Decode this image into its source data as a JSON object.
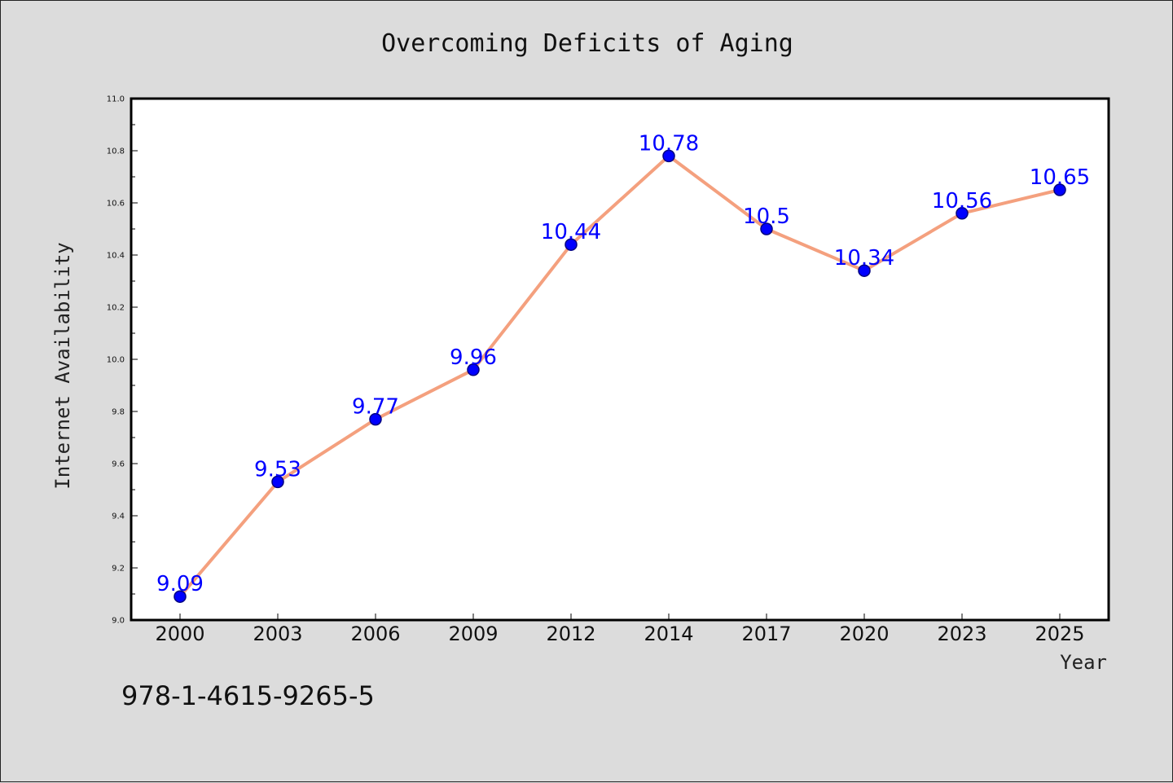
{
  "chart_data": {
    "type": "line",
    "title": "Overcoming Deficits of Aging",
    "xlabel": "Year",
    "ylabel": "Internet Availability",
    "categories": [
      "2000",
      "2003",
      "2006",
      "2009",
      "2012",
      "2014",
      "2017",
      "2020",
      "2023",
      "2025"
    ],
    "series": [
      {
        "values": [
          9.09,
          9.53,
          9.77,
          9.96,
          10.44,
          10.78,
          10.5,
          10.34,
          10.56,
          10.65
        ]
      }
    ],
    "data_labels": [
      "9.09",
      "9.53",
      "9.77",
      "9.96",
      "10.44",
      "10.78",
      "10.5",
      "10.34",
      "10.56",
      "10.65"
    ],
    "ylim": [
      9.0,
      11.0
    ],
    "yticks": [
      "9.0",
      "9.2",
      "9.4",
      "9.6",
      "9.8",
      "10.0",
      "10.2",
      "10.4",
      "10.6",
      "10.8",
      "11.0"
    ],
    "grid": false,
    "legend": "none",
    "colors": {
      "line": "#f4a07e",
      "marker": "#0000ff",
      "marker_edge": "#000080",
      "data_label": "#0000ff",
      "plot_bg": "#ffffff",
      "figure_bg": "#dcdcdc"
    }
  },
  "annotation": "978-1-4615-9265-5"
}
